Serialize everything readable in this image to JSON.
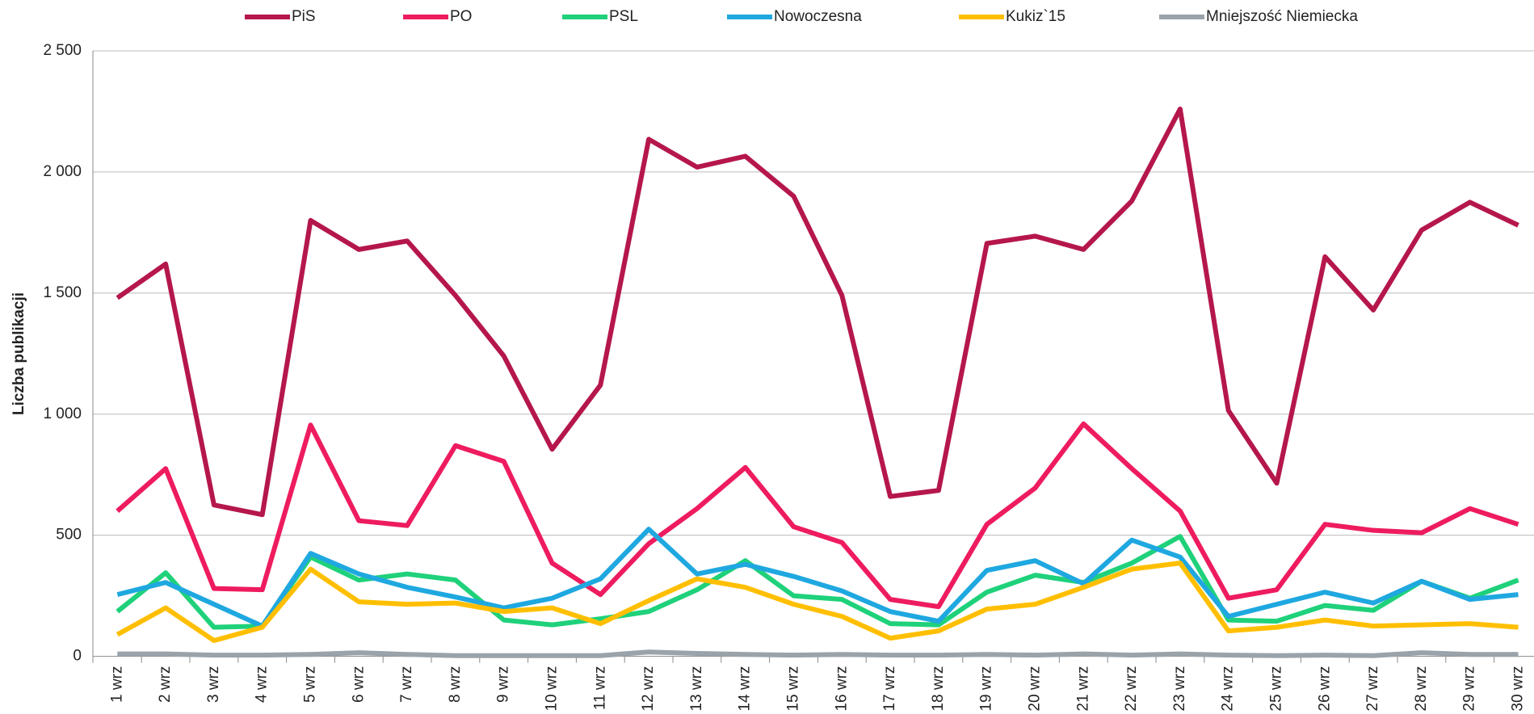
{
  "chart_data": {
    "type": "line",
    "y_label": "Liczba publikacji",
    "categories": [
      "1 wrz",
      "2 wrz",
      "3 wrz",
      "4 wrz",
      "5 wrz",
      "6 wrz",
      "7 wrz",
      "8 wrz",
      "9 wrz",
      "10 wrz",
      "11 wrz",
      "12 wrz",
      "13 wrz",
      "14 wrz",
      "15 wrz",
      "16 wrz",
      "17 wrz",
      "18 wrz",
      "19 wrz",
      "20 wrz",
      "21 wrz",
      "22 wrz",
      "23 wrz",
      "24 wrz",
      "25 wrz",
      "26 wrz",
      "27 wrz",
      "28 wrz",
      "29 wrz",
      "30 wrz"
    ],
    "series": [
      {
        "name": "PiS",
        "color": "#b5174b",
        "values": [
          1480,
          1620,
          625,
          585,
          1800,
          1680,
          1715,
          1490,
          1240,
          855,
          1120,
          2135,
          2020,
          2065,
          1900,
          1490,
          660,
          685,
          1705,
          1735,
          1680,
          1880,
          2260,
          1015,
          715,
          1650,
          1430,
          1760,
          1875,
          1780
        ]
      },
      {
        "name": "PO",
        "color": "#ee1c5f",
        "values": [
          600,
          775,
          280,
          275,
          955,
          560,
          540,
          870,
          805,
          385,
          255,
          465,
          610,
          780,
          535,
          470,
          235,
          205,
          545,
          695,
          960,
          775,
          600,
          240,
          275,
          545,
          520,
          510,
          610,
          545
        ]
      },
      {
        "name": "PSL",
        "color": "#1fd17a",
        "values": [
          185,
          345,
          120,
          125,
          410,
          315,
          340,
          315,
          150,
          130,
          155,
          185,
          275,
          395,
          250,
          235,
          135,
          130,
          265,
          335,
          305,
          385,
          495,
          150,
          145,
          210,
          190,
          310,
          240,
          315
        ]
      },
      {
        "name": "Nowoczesna",
        "color": "#1fa8e0",
        "values": [
          255,
          305,
          215,
          125,
          425,
          340,
          285,
          245,
          200,
          240,
          320,
          525,
          340,
          380,
          330,
          270,
          185,
          145,
          355,
          395,
          300,
          480,
          410,
          165,
          215,
          265,
          220,
          310,
          235,
          255
        ]
      },
      {
        "name": "Kukiz`15",
        "color": "#ffbf00",
        "values": [
          90,
          200,
          65,
          120,
          360,
          225,
          215,
          220,
          185,
          200,
          135,
          230,
          320,
          285,
          215,
          165,
          75,
          105,
          195,
          215,
          285,
          360,
          385,
          105,
          120,
          150,
          125,
          130,
          135,
          120
        ]
      },
      {
        "name": "Mniejszość Niemiecka",
        "color": "#9aa3aa",
        "values": [
          10,
          10,
          5,
          5,
          8,
          15,
          8,
          3,
          3,
          3,
          3,
          18,
          12,
          8,
          5,
          8,
          5,
          5,
          8,
          5,
          10,
          5,
          10,
          5,
          3,
          5,
          3,
          15,
          8,
          8
        ]
      }
    ],
    "ylim": [
      0,
      2500
    ],
    "yticks": [
      0,
      500,
      {
        "value": 1000,
        "label": "1 000"
      },
      {
        "value": 1500,
        "label": "1 500"
      },
      {
        "value": 2000,
        "label": "2 000"
      },
      {
        "value": 2500,
        "label": "2 500"
      }
    ],
    "grid": true,
    "legend": "top"
  }
}
